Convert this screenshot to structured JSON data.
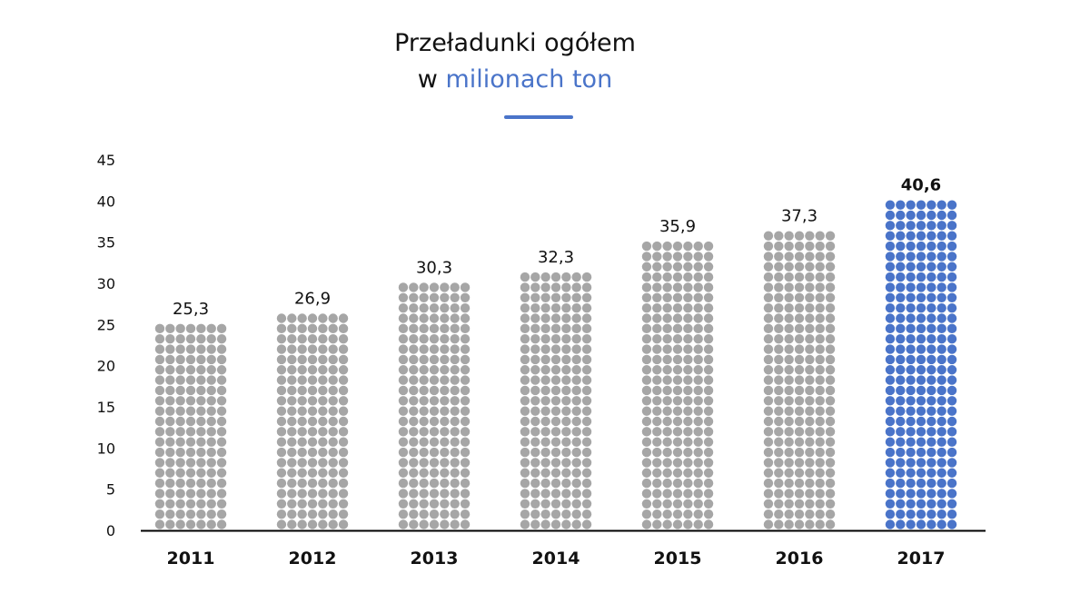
{
  "title": {
    "line1": "Przeładunki ogółem",
    "line2_prefix": "w ",
    "line2_accent": "milionach ton"
  },
  "colors": {
    "accent": "#4a74c9",
    "dot_default": "#a6a6a6",
    "dot_highlight": "#4a74c9",
    "axis": "#000000"
  },
  "chart_data": {
    "type": "bar",
    "title": "Przeładunki ogółem w milionach ton",
    "categories": [
      "2011",
      "2012",
      "2013",
      "2014",
      "2015",
      "2016",
      "2017"
    ],
    "values": [
      25.3,
      26.9,
      30.3,
      32.3,
      35.9,
      37.3,
      40.6
    ],
    "value_labels": [
      "25,3",
      "26,9",
      "30,3",
      "32,3",
      "35,9",
      "37,3",
      "40,6"
    ],
    "highlight_index": 6,
    "ylim": [
      0,
      45
    ],
    "y_ticks": [
      0,
      5,
      10,
      15,
      20,
      25,
      30,
      35,
      40,
      45
    ],
    "xlabel": "",
    "ylabel": "",
    "grid": false,
    "legend": "none",
    "style": "dot-column"
  }
}
